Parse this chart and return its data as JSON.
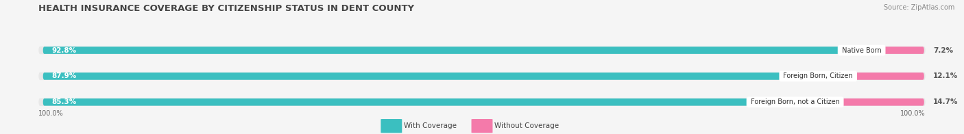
{
  "title": "HEALTH INSURANCE COVERAGE BY CITIZENSHIP STATUS IN DENT COUNTY",
  "source": "Source: ZipAtlas.com",
  "categories": [
    "Native Born",
    "Foreign Born, Citizen",
    "Foreign Born, not a Citizen"
  ],
  "with_coverage": [
    92.8,
    87.9,
    85.3
  ],
  "without_coverage": [
    7.2,
    12.1,
    14.7
  ],
  "with_coverage_color": "#3bbfc0",
  "without_coverage_color": "#f47aaa",
  "background_color": "#f5f5f5",
  "bar_bg_color": "#e8e8e8",
  "legend_with": "With Coverage",
  "legend_without": "Without Coverage",
  "left_label": "100.0%",
  "right_label": "100.0%",
  "title_fontsize": 9.5,
  "source_fontsize": 7,
  "bar_label_fontsize": 7.5,
  "category_fontsize": 7,
  "legend_fontsize": 7.5,
  "tick_fontsize": 7
}
